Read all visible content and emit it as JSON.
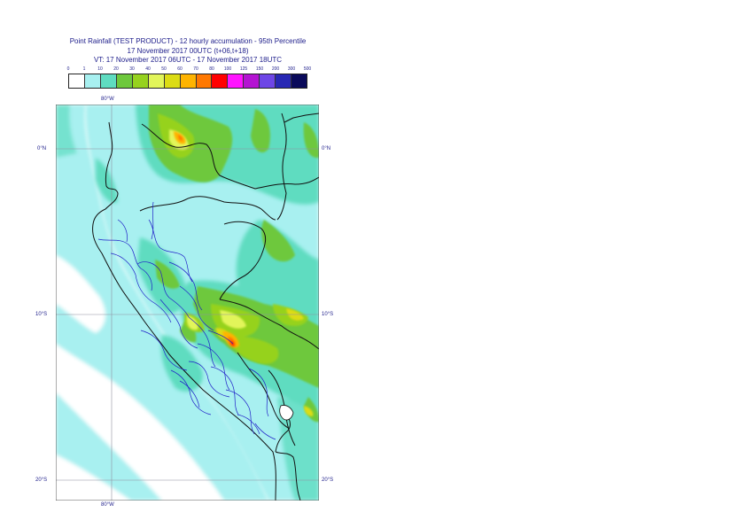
{
  "title": {
    "lines": [
      "Point Rainfall (TEST PRODUCT) - 12 hourly accumulation - 95th Percentile",
      "17 November 2017 00UTC (t+06,t+18)",
      "VT: 17 November 2017 06UTC - 17 November 2017 18UTC"
    ]
  },
  "legend": {
    "ticks": [
      "0",
      "1",
      "10",
      "20",
      "30",
      "40",
      "50",
      "60",
      "70",
      "80",
      "100",
      "125",
      "150",
      "200",
      "300",
      "500"
    ],
    "colors": [
      "#ffffff",
      "#a8f0f0",
      "#5fdcc0",
      "#6ec83c",
      "#96d21e",
      "#e2f55a",
      "#dcdc14",
      "#ffb400",
      "#ff7800",
      "#ff0000",
      "#ff14ff",
      "#b414d2",
      "#6e46e6",
      "#2828b4",
      "#0a0a5a"
    ]
  },
  "map": {
    "lon_labels": {
      "top": "80°W",
      "bottom": "80°W"
    },
    "lat_labels": {
      "left": [
        "0°N",
        "10°S",
        "20°S"
      ],
      "right": [
        "0°N",
        "10°S",
        "20°S"
      ]
    },
    "colors": {
      "ocean_base": "#ffffff",
      "light_cyan": "#a8f0f0",
      "teal": "#5fdcc0",
      "green": "#6ec83c",
      "yellow_green": "#96d21e",
      "pale_yellow": "#e2f55a",
      "yellow": "#dcdc14",
      "orange": "#ffb400",
      "dark_orange": "#ff7800",
      "red": "#ff0000",
      "border": "#111111",
      "regions": "#2020c8",
      "grid": "#9090a0"
    }
  }
}
